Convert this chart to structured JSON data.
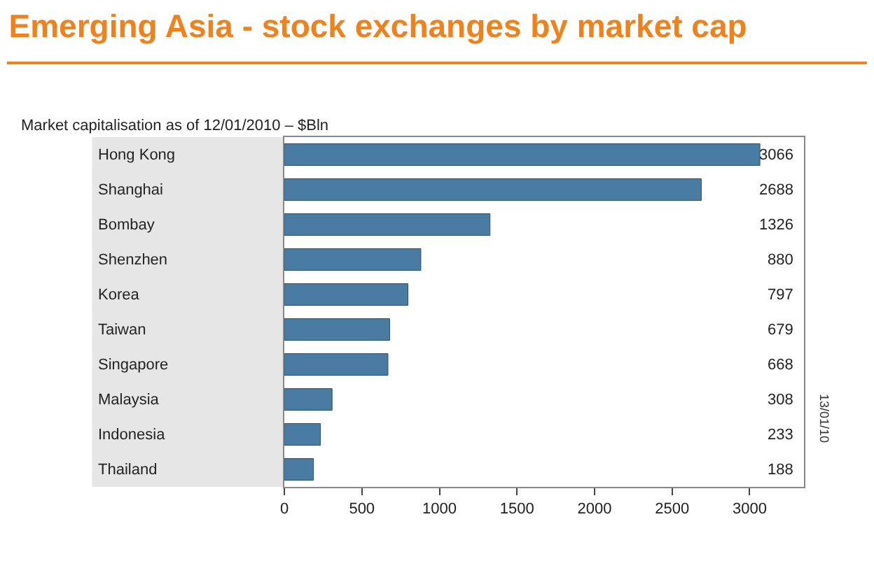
{
  "chart_data": {
    "type": "bar",
    "orientation": "horizontal",
    "title": "Emerging Asia - stock exchanges by market cap",
    "subtitle": "Market capitalisation as of 12/01/2010 – $Bln",
    "categories": [
      "Hong Kong",
      "Shanghai",
      "Bombay",
      "Shenzhen",
      "Korea",
      "Taiwan",
      "Singapore",
      "Malaysia",
      "Indonesia",
      "Thailand"
    ],
    "values": [
      3066,
      2688,
      1326,
      880,
      797,
      679,
      668,
      308,
      233,
      188
    ],
    "color": "#4a7ba3",
    "xlim": [
      0,
      3350
    ],
    "xticks": [
      0,
      500,
      1000,
      1500,
      2000,
      2500,
      3000
    ],
    "data_labels": true,
    "annotations": [
      "13/01/10"
    ]
  }
}
